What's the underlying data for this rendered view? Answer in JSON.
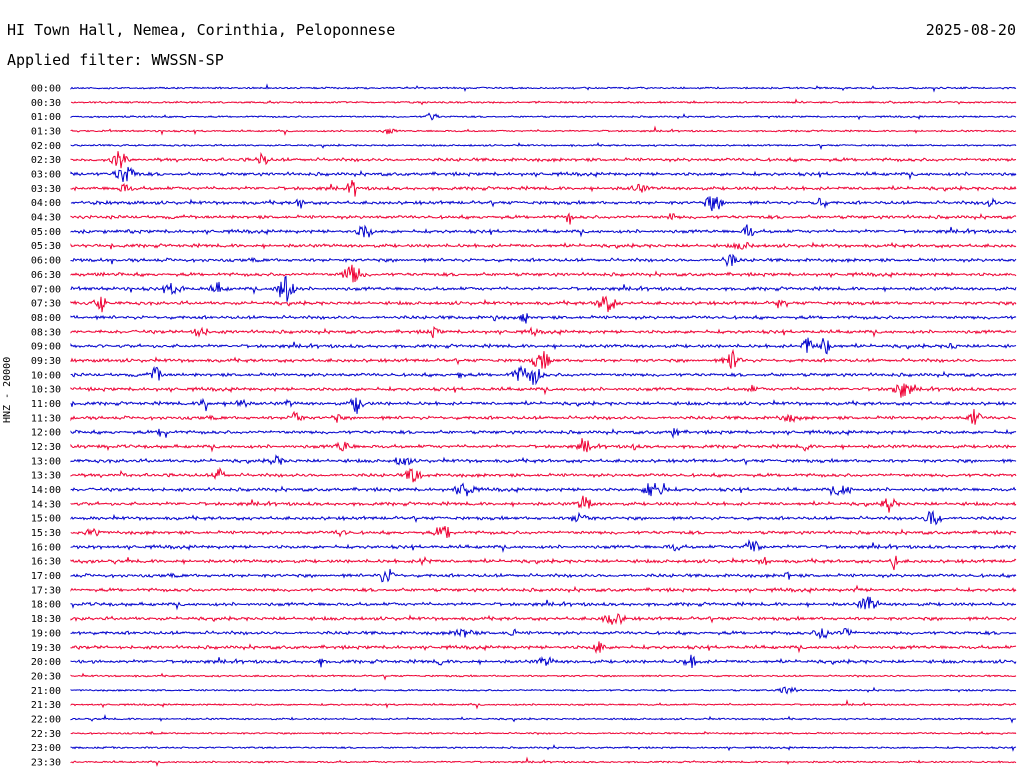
{
  "header": {
    "title": "HI Town Hall, Nemea, Corinthia, Peloponnese",
    "date": "2025-08-20",
    "filter_label": "Applied filter: WWSSN-SP"
  },
  "colors": {
    "blue": "#0000cc",
    "red": "#ee0033"
  },
  "chart_data": {
    "type": "line",
    "title": "HI Town Hall, Nemea, Corinthia, Peloponnese",
    "subtitle": "Applied filter: WWSSN-SP",
    "ylabel": "HNZ - 20000",
    "xlabel": "",
    "grid": false,
    "row_labels": [
      "00:00",
      "00:30",
      "01:00",
      "01:30",
      "02:00",
      "02:30",
      "03:00",
      "03:30",
      "04:00",
      "04:30",
      "05:00",
      "05:30",
      "06:00",
      "06:30",
      "07:00",
      "07:30",
      "08:00",
      "08:30",
      "09:00",
      "09:30",
      "10:00",
      "10:30",
      "11:00",
      "11:30",
      "12:00",
      "12:30",
      "13:00",
      "13:30",
      "14:00",
      "14:30",
      "15:00",
      "15:30",
      "16:00",
      "16:30",
      "17:00",
      "17:30",
      "18:00",
      "18:30",
      "19:00",
      "19:30",
      "20:00",
      "20:30",
      "21:00",
      "21:30",
      "22:00",
      "22:30",
      "23:00",
      "23:30"
    ],
    "series": [
      {
        "color": "#0000cc"
      },
      {
        "color": "#ee0033"
      }
    ]
  }
}
